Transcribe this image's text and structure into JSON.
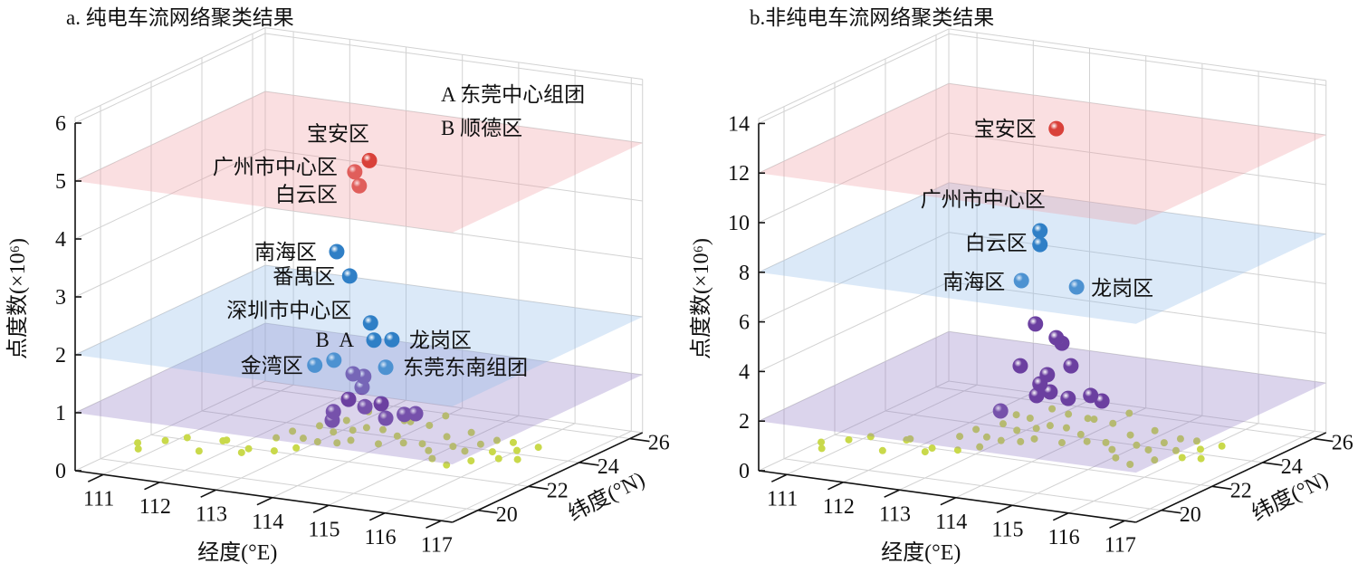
{
  "chart_data": [
    {
      "type": "scatter3d",
      "title": "a. 纯电车流网络聚类结果",
      "xlabel": "经度(°E)",
      "ylabel": "纬度(°N)",
      "zlabel": "点度数(×10⁶)",
      "xlim": [
        110.5,
        117.2
      ],
      "ylim": [
        19,
        26.5
      ],
      "zlim": [
        0,
        6.1
      ],
      "x_ticks": [
        "111",
        "112",
        "113",
        "114",
        "115",
        "116",
        "117"
      ],
      "y_ticks": [
        "20",
        "22",
        "24",
        "26"
      ],
      "z_ticks": [
        "0",
        "1",
        "2",
        "3",
        "4",
        "5",
        "6"
      ],
      "grid": true,
      "planes": [
        {
          "z": 1,
          "color": "#8e79c4"
        },
        {
          "z": 2,
          "color": "#8fbbe8"
        },
        {
          "z": 5,
          "color": "#f19ca3"
        }
      ],
      "annotations": [
        "A 东莞中心组团",
        "B 顺德区"
      ],
      "clusters": [
        {
          "name": "cluster-1",
          "color": "#d9413a",
          "points": [
            {
              "label": "宝安区",
              "lon": 114.24,
              "lat": 22.3,
              "z": 5.17
            },
            {
              "label": "广州市中心区",
              "lon": 113.98,
              "lat": 22.3,
              "z": 4.94
            },
            {
              "label": "白云区",
              "lon": 114.06,
              "lat": 22.3,
              "z": 4.71
            }
          ]
        },
        {
          "name": "cluster-2",
          "color": "#2f7fc6",
          "points": [
            {
              "label": "南海区",
              "lon": 113.66,
              "lat": 22.3,
              "z": 3.52
            },
            {
              "label": "番禺区",
              "lon": 113.89,
              "lat": 22.3,
              "z": 3.13
            },
            {
              "label": "深圳市中心区",
              "lon": 114.26,
              "lat": 22.3,
              "z": 2.37
            },
            {
              "label": "A",
              "lon": 114.32,
              "lat": 22.3,
              "z": 2.08
            },
            {
              "label": "龙岗区",
              "lon": 114.64,
              "lat": 22.3,
              "z": 2.13
            },
            {
              "label": "B",
              "lon": 113.61,
              "lat": 22.3,
              "z": 1.64
            },
            {
              "label": "金湾区",
              "lon": 113.27,
              "lat": 22.3,
              "z": 1.51
            },
            {
              "label": "东莞东南组团",
              "lon": 114.53,
              "lat": 22.3,
              "z": 1.64
            }
          ]
        },
        {
          "name": "cluster-3",
          "color": "#6b3fa0",
          "points": [
            {
              "lon": 113.95,
              "lat": 22.3,
              "z": 1.45
            },
            {
              "lon": 114.14,
              "lat": 22.3,
              "z": 1.43
            },
            {
              "lon": 114.11,
              "lat": 22.3,
              "z": 1.24
            },
            {
              "lon": 113.87,
              "lat": 22.3,
              "z": 1.0
            },
            {
              "lon": 114.16,
              "lat": 22.3,
              "z": 0.91
            },
            {
              "lon": 114.45,
              "lat": 22.3,
              "z": 1.0
            },
            {
              "lon": 113.6,
              "lat": 22.3,
              "z": 0.75
            },
            {
              "lon": 113.58,
              "lat": 22.3,
              "z": 0.6
            },
            {
              "lon": 114.53,
              "lat": 22.3,
              "z": 0.76
            },
            {
              "lon": 114.86,
              "lat": 22.3,
              "z": 0.87
            },
            {
              "lon": 115.06,
              "lat": 22.3,
              "z": 0.91
            }
          ]
        }
      ],
      "background_color": "#c9d94b",
      "background_scale": 1
    },
    {
      "type": "scatter3d",
      "title": "b.非纯电车流网络聚类结果",
      "xlabel": "经度(°E)",
      "ylabel": "纬度(°N)",
      "zlabel": "点度数(×10⁶)",
      "xlim": [
        110.5,
        117.2
      ],
      "ylim": [
        19,
        26.5
      ],
      "zlim": [
        0,
        14.2
      ],
      "x_ticks": [
        "111",
        "112",
        "113",
        "114",
        "115",
        "116",
        "117"
      ],
      "y_ticks": [
        "20",
        "22",
        "24",
        "26"
      ],
      "z_ticks": [
        "0",
        "2",
        "4",
        "6",
        "8",
        "10",
        "12",
        "14"
      ],
      "grid": true,
      "planes": [
        {
          "z": 2,
          "color": "#8e79c4"
        },
        {
          "z": 8,
          "color": "#8fbbe8"
        },
        {
          "z": 12,
          "color": "#f19ca3"
        }
      ],
      "annotations": [],
      "clusters": [
        {
          "name": "cluster-1",
          "color": "#d9413a",
          "points": [
            {
              "label": "宝安区",
              "lon": 114.3,
              "lat": 22.3,
              "z": 13.38
            }
          ]
        },
        {
          "name": "cluster-2",
          "color": "#2f7fc6",
          "points": [
            {
              "label": "广州市中心区",
              "lon": 114.01,
              "lat": 22.3,
              "z": 9.17
            },
            {
              "label": "白云区",
              "lon": 114.01,
              "lat": 22.3,
              "z": 8.62
            },
            {
              "label": "南海区",
              "lon": 113.68,
              "lat": 22.3,
              "z": 7.06
            },
            {
              "label": "龙岗区",
              "lon": 114.66,
              "lat": 22.3,
              "z": 7.11
            }
          ]
        },
        {
          "name": "cluster-3",
          "color": "#6b3fa0",
          "points": [
            {
              "lon": 113.93,
              "lat": 22.3,
              "z": 5.39
            },
            {
              "lon": 114.3,
              "lat": 22.3,
              "z": 4.95
            },
            {
              "lon": 114.4,
              "lat": 22.3,
              "z": 4.76
            },
            {
              "lon": 113.66,
              "lat": 22.3,
              "z": 3.62
            },
            {
              "lon": 114.56,
              "lat": 22.3,
              "z": 3.9
            },
            {
              "lon": 114.14,
              "lat": 22.3,
              "z": 3.41
            },
            {
              "lon": 114.01,
              "lat": 22.3,
              "z": 3.0
            },
            {
              "lon": 113.95,
              "lat": 22.3,
              "z": 2.51
            },
            {
              "lon": 114.19,
              "lat": 22.3,
              "z": 2.73
            },
            {
              "lon": 114.51,
              "lat": 22.3,
              "z": 2.57
            },
            {
              "lon": 114.91,
              "lat": 22.3,
              "z": 2.81
            },
            {
              "lon": 115.11,
              "lat": 22.3,
              "z": 2.65
            },
            {
              "lon": 113.31,
              "lat": 22.3,
              "z": 1.69
            }
          ]
        }
      ],
      "background_color": "#c9d94b",
      "background_scale": 2.5
    }
  ],
  "background_points_columns": [
    "lon",
    "lat",
    "z_a"
  ],
  "background_points": [
    [
      110.8,
      20.8,
      0.15
    ],
    [
      110.9,
      20.6,
      0.1
    ],
    [
      111.2,
      21.0,
      0.2
    ],
    [
      111.5,
      21.2,
      0.25
    ],
    [
      111.8,
      21.0,
      0.1
    ],
    [
      112.0,
      21.5,
      0.2
    ],
    [
      112.2,
      21.2,
      0.3
    ],
    [
      112.5,
      21.4,
      0.15
    ],
    [
      112.6,
      20.9,
      0.2
    ],
    [
      112.9,
      21.6,
      0.35
    ],
    [
      113.0,
      21.3,
      0.2
    ],
    [
      113.1,
      21.8,
      0.45
    ],
    [
      113.2,
      22.0,
      0.3
    ],
    [
      113.3,
      21.5,
      0.25
    ],
    [
      113.4,
      22.2,
      0.5
    ],
    [
      113.5,
      22.5,
      0.6
    ],
    [
      113.5,
      21.9,
      0.3
    ],
    [
      113.6,
      22.3,
      0.4
    ],
    [
      113.7,
      22.6,
      0.55
    ],
    [
      113.8,
      22.0,
      0.3
    ],
    [
      113.9,
      22.4,
      0.45
    ],
    [
      114.0,
      22.8,
      0.7
    ],
    [
      114.0,
      22.1,
      0.35
    ],
    [
      114.1,
      22.5,
      0.5
    ],
    [
      114.2,
      23.0,
      0.6
    ],
    [
      114.3,
      22.7,
      0.45
    ],
    [
      114.4,
      22.3,
      0.3
    ],
    [
      114.5,
      23.1,
      0.55
    ],
    [
      114.6,
      22.6,
      0.4
    ],
    [
      114.7,
      22.9,
      0.6
    ],
    [
      114.8,
      22.4,
      0.35
    ],
    [
      114.9,
      23.2,
      0.5
    ],
    [
      115.0,
      22.7,
      0.3
    ],
    [
      115.1,
      23.4,
      0.65
    ],
    [
      115.2,
      22.5,
      0.25
    ],
    [
      115.3,
      23.0,
      0.4
    ],
    [
      115.4,
      22.2,
      0.2
    ],
    [
      115.5,
      22.8,
      0.3
    ],
    [
      115.6,
      23.3,
      0.45
    ],
    [
      115.7,
      22.1,
      0.15
    ],
    [
      115.8,
      22.6,
      0.3
    ],
    [
      115.9,
      23.0,
      0.35
    ],
    [
      116.0,
      22.4,
      0.2
    ],
    [
      116.1,
      23.2,
      0.4
    ],
    [
      116.2,
      22.8,
      0.3
    ],
    [
      116.3,
      23.4,
      0.35
    ],
    [
      116.4,
      22.6,
      0.25
    ],
    [
      116.5,
      23.1,
      0.3
    ],
    [
      116.6,
      22.9,
      0.2
    ],
    [
      116.7,
      23.5,
      0.3
    ]
  ]
}
